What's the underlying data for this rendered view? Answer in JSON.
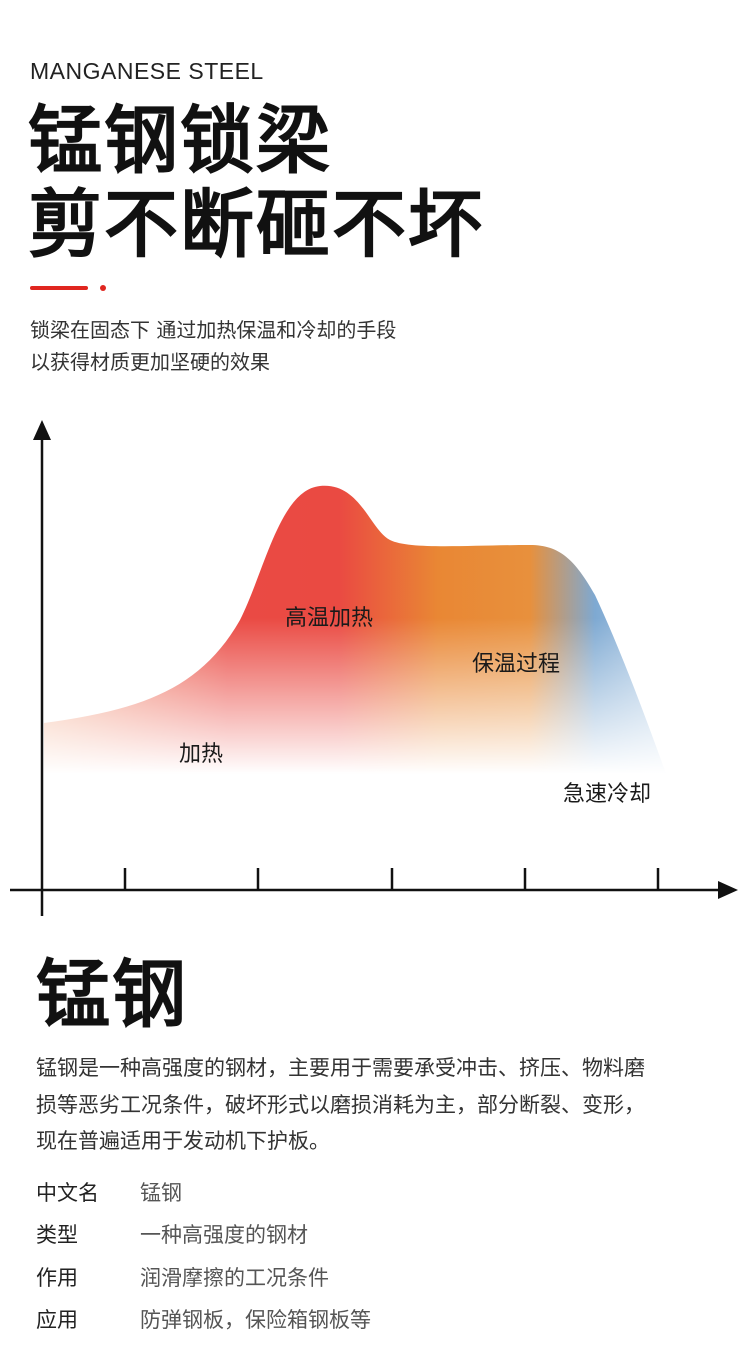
{
  "header": {
    "eyebrow": "MANGANESE STEEL",
    "headline_line1": "锰钢锁梁",
    "headline_line2": "剪不断砸不坏",
    "intro_line1": "锁梁在固态下 通过加热保温和冷却的手段",
    "intro_line2": "以获得材质更加坚硬的效果"
  },
  "process_chart": {
    "labels": {
      "heating": "加热",
      "high_temp_heating": "高温加热",
      "holding": "保温过程",
      "rapid_cooling": "急速冷却"
    }
  },
  "section": {
    "title": "锰钢",
    "desc_line1": "锰钢是一种高强度的钢材，主要用于需要承受冲击、挤压、物料磨",
    "desc_line2": "损等恶劣工况条件，破坏形式以磨损消耗为主，部分断裂、变形，",
    "desc_line3": "现在普遍适用于发动机下护板。"
  },
  "specs": [
    {
      "key": "中文名",
      "value": "锰钢"
    },
    {
      "key": "类型",
      "value": "一种高强度的钢材"
    },
    {
      "key": "作用",
      "value": "润滑摩擦的工况条件"
    },
    {
      "key": "应用",
      "value": "防弹钢板，保险箱钢板等"
    }
  ],
  "colors": {
    "accent_red": "#e0261f",
    "heat_red": "#e8423f",
    "hold_orange": "#e98a35",
    "cool_blue": "#7fa9d0"
  }
}
